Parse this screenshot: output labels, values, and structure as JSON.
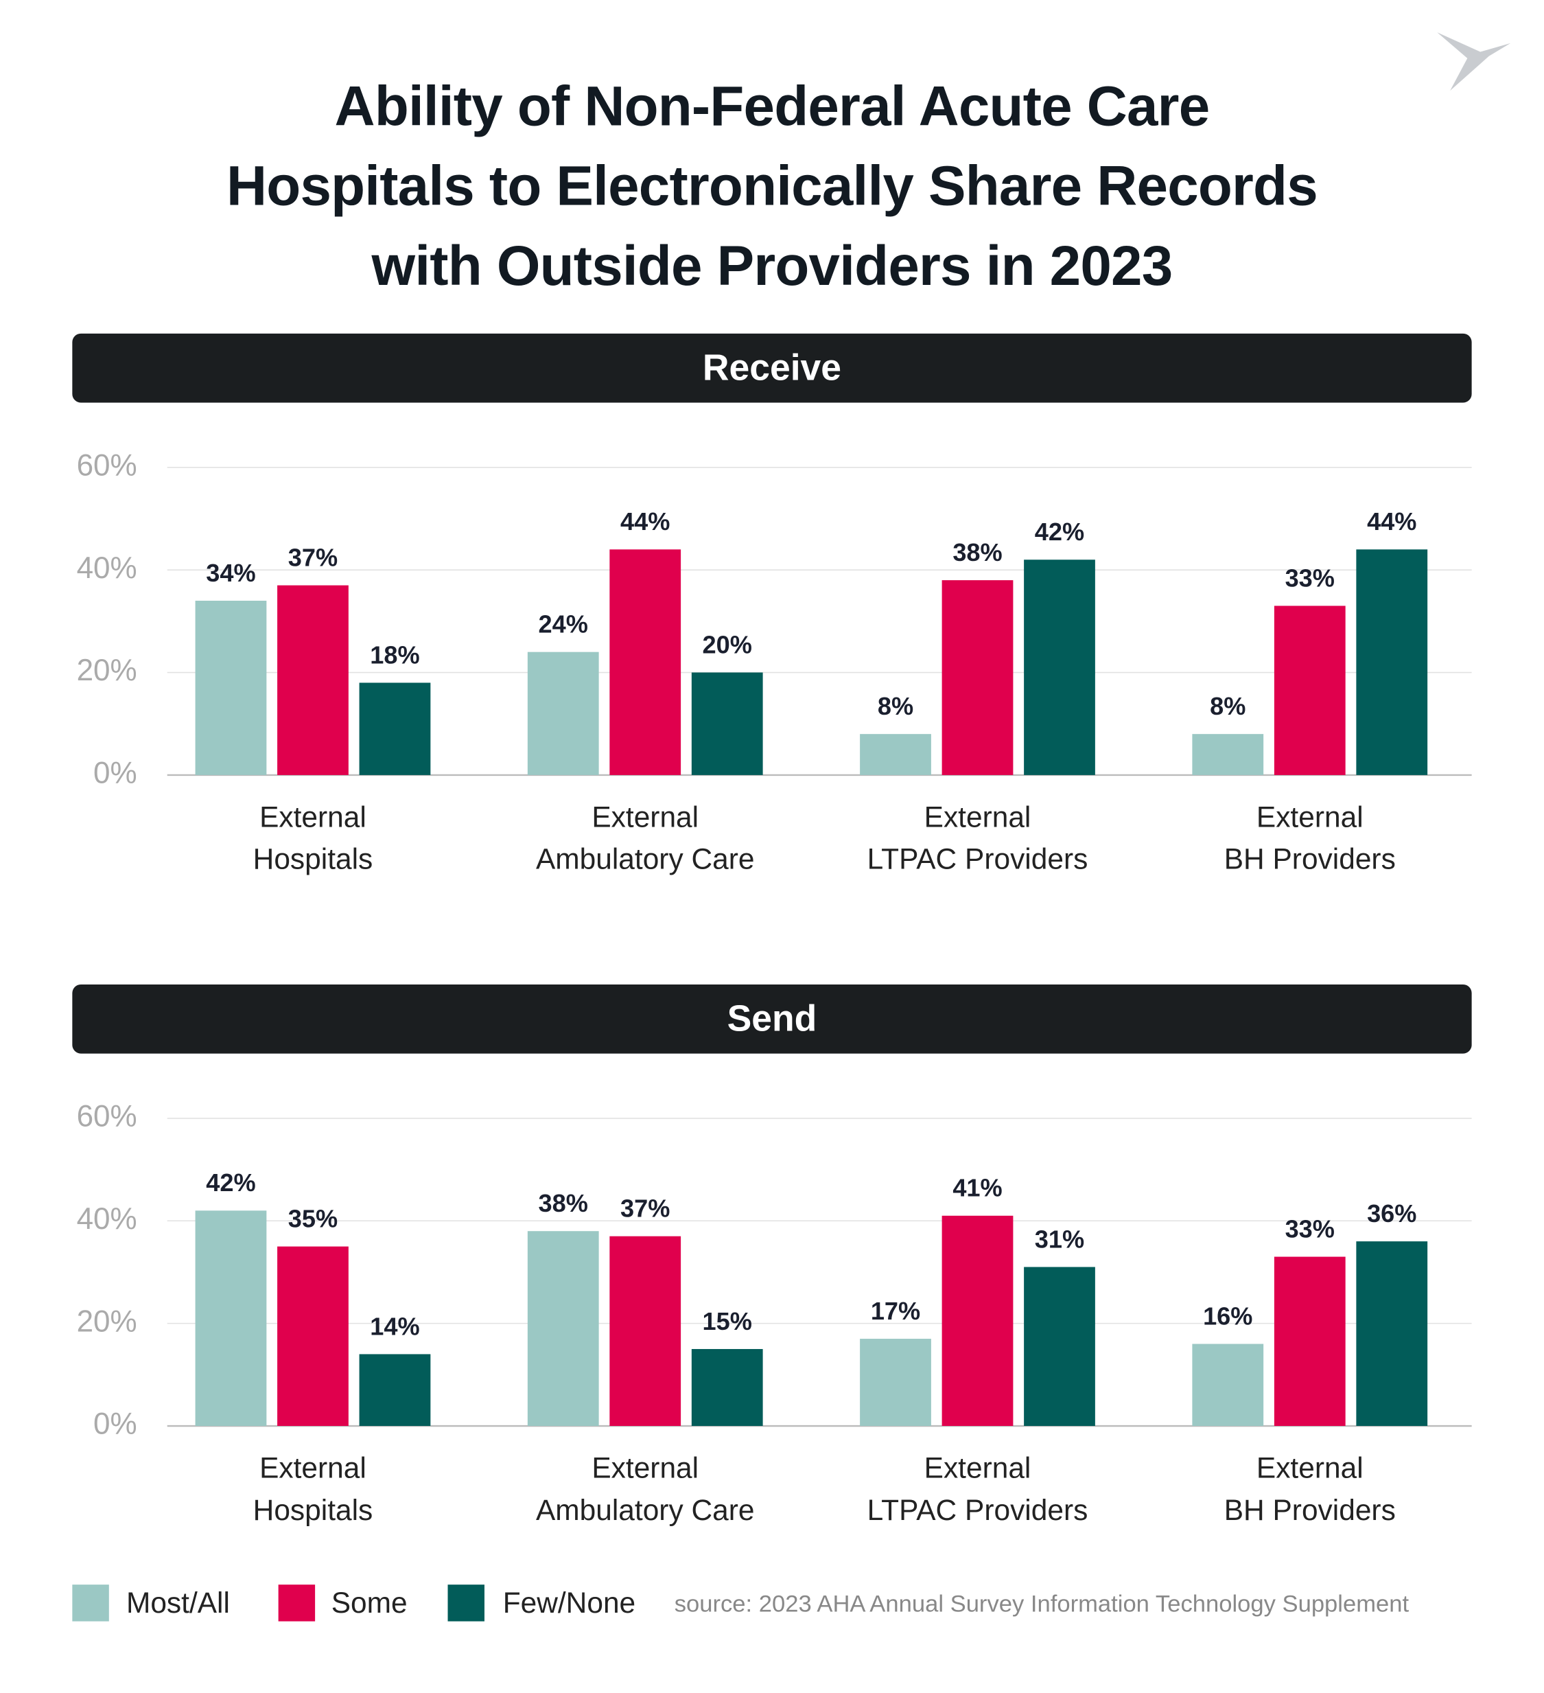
{
  "title": "Ability of Non-Federal Acute Care\nHospitals to Electronically Share Records\nwith Outside Providers in 2023",
  "source": "source: 2023 AHA Annual Survey Information Technology Supplement",
  "chart_data": [
    {
      "type": "bar",
      "title": "Receive",
      "categories": [
        "External\nHospitals",
        "External\nAmbulatory Care",
        "External\nLTPAC Providers",
        "External\nBH Providers"
      ],
      "series": [
        {
          "name": "Most/All",
          "color": "#9bc8c4",
          "values": [
            34,
            24,
            8,
            8
          ],
          "value_labels": [
            "34%",
            "24%",
            "8%",
            "8%"
          ]
        },
        {
          "name": "Some",
          "color": "#e0004d",
          "values": [
            37,
            44,
            38,
            33
          ],
          "value_labels": [
            "37%",
            "44%",
            "38%",
            "33%"
          ]
        },
        {
          "name": "Few/None",
          "color": "#025c59",
          "values": [
            18,
            20,
            42,
            44
          ],
          "value_labels": [
            "18%",
            "20%",
            "42%",
            "44%"
          ]
        }
      ],
      "ylim": [
        0,
        60
      ],
      "yticks": [
        {
          "value": 0,
          "label": "0%"
        },
        {
          "value": 20,
          "label": "20%"
        },
        {
          "value": 40,
          "label": "40%"
        },
        {
          "value": 60,
          "label": "60%"
        }
      ],
      "grid": true
    },
    {
      "type": "bar",
      "title": "Send",
      "categories": [
        "External\nHospitals",
        "External\nAmbulatory Care",
        "External\nLTPAC Providers",
        "External\nBH Providers"
      ],
      "series": [
        {
          "name": "Most/All",
          "color": "#9bc8c4",
          "values": [
            42,
            38,
            17,
            16
          ],
          "value_labels": [
            "42%",
            "38%",
            "17%",
            "16%"
          ]
        },
        {
          "name": "Some",
          "color": "#e0004d",
          "values": [
            35,
            37,
            41,
            33
          ],
          "value_labels": [
            "35%",
            "37%",
            "41%",
            "33%"
          ]
        },
        {
          "name": "Few/None",
          "color": "#025c59",
          "values": [
            14,
            15,
            31,
            36
          ],
          "value_labels": [
            "14%",
            "15%",
            "31%",
            "36%"
          ]
        }
      ],
      "ylim": [
        0,
        60
      ],
      "yticks": [
        {
          "value": 0,
          "label": "0%"
        },
        {
          "value": 20,
          "label": "20%"
        },
        {
          "value": 40,
          "label": "40%"
        },
        {
          "value": 60,
          "label": "60%"
        }
      ],
      "grid": true
    }
  ]
}
